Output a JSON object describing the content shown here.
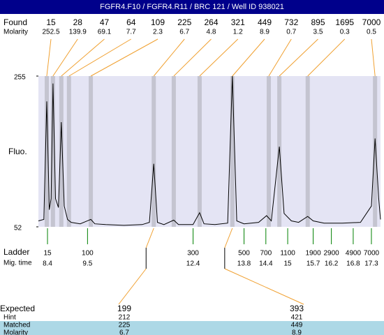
{
  "chart_data": {
    "type": "electropherogram",
    "title": "FGFR4.F10 / FGFR4.R11 / BRC 121 / Well ID 938021",
    "found_label": "Found",
    "molarity_label": "Molarity",
    "found": {
      "size": [
        15,
        28,
        47,
        64,
        109,
        225,
        264,
        321,
        449,
        732,
        895,
        1695,
        7000
      ],
      "molarity": [
        252.5,
        139.9,
        69.1,
        7.7,
        2.3,
        6.7,
        4.8,
        1.2,
        8.9,
        0.7,
        3.5,
        0.3,
        0.5
      ],
      "time": [
        8.38,
        8.55,
        8.78,
        8.99,
        9.59,
        11.32,
        11.87,
        12.58,
        13.48,
        14.48,
        14.77,
        15.55,
        17.4
      ]
    },
    "y_label": "Fluo.",
    "ylim": [
      52,
      255
    ],
    "yticks": [
      52,
      255
    ],
    "xlim": [
      8.15,
      17.55
    ],
    "trace": {
      "x": [
        8.15,
        8.3,
        8.38,
        8.45,
        8.5,
        8.55,
        8.62,
        8.7,
        8.78,
        8.86,
        8.95,
        9.05,
        9.3,
        9.59,
        9.7,
        10.0,
        10.5,
        11.0,
        11.2,
        11.32,
        11.42,
        11.6,
        11.87,
        12.0,
        12.4,
        12.58,
        12.7,
        13.0,
        13.35,
        13.48,
        13.6,
        13.8,
        14.2,
        14.42,
        14.55,
        14.77,
        14.9,
        15.1,
        15.3,
        15.55,
        15.7,
        16.0,
        16.5,
        17.0,
        17.3,
        17.4,
        17.5,
        17.55
      ],
      "y": [
        60,
        62,
        221,
        75,
        90,
        245,
        90,
        78,
        193,
        80,
        62,
        58,
        56,
        62,
        56,
        55,
        54,
        55,
        58,
        137,
        58,
        55,
        61,
        55,
        55,
        71,
        56,
        55,
        57,
        255,
        60,
        56,
        58,
        67,
        60,
        160,
        70,
        60,
        58,
        66,
        60,
        57,
        57,
        58,
        80,
        171,
        90,
        62
      ]
    },
    "ladder_label": "Ladder",
    "mig_time_label": "Mig. time",
    "ladder": {
      "size": [
        15,
        100,
        300,
        500,
        700,
        1100,
        1900,
        2900,
        4900,
        7000
      ],
      "time": [
        8.4,
        9.5,
        12.4,
        13.8,
        14.4,
        15,
        15.7,
        16.2,
        16.8,
        17.3
      ]
    },
    "expected": {
      "labels": [
        "Expected",
        "Hint",
        "Matched",
        "Molarity"
      ],
      "columns": [
        {
          "expected": 199,
          "hint": 212,
          "matched": 225,
          "molarity": 6.7
        },
        {
          "expected": 393,
          "hint": 421,
          "matched": 449,
          "molarity": 8.9
        }
      ]
    }
  }
}
